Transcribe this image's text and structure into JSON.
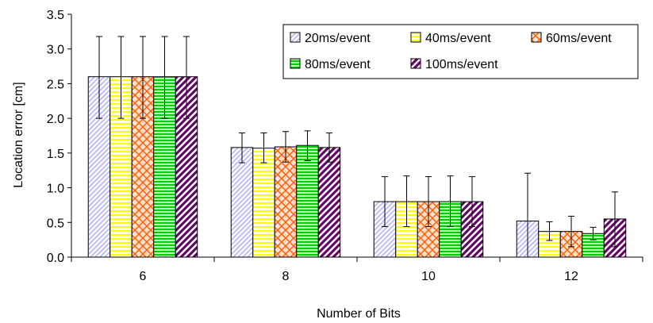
{
  "chart_data": {
    "type": "bar",
    "title": "",
    "xlabel": "Number of Bits",
    "ylabel": "Location error [cm]",
    "ylim": [
      0,
      3.5
    ],
    "yticks": [
      "0.0",
      "0.5",
      "1.0",
      "1.5",
      "2.0",
      "2.5",
      "3.0",
      "3.5"
    ],
    "categories": [
      "6",
      "8",
      "10",
      "12"
    ],
    "grid": false,
    "legend_position": "top-right",
    "series": [
      {
        "name": "20ms/event",
        "pattern": "diagonal-light",
        "color": "#9999ff",
        "values": [
          2.6,
          1.58,
          0.8,
          0.52
        ],
        "err_low": [
          2.0,
          1.36,
          0.44,
          0.0
        ],
        "err_high": [
          3.18,
          1.79,
          1.16,
          1.21
        ]
      },
      {
        "name": "40ms/event",
        "pattern": "horizontal-yellow",
        "color": "#ffff00",
        "values": [
          2.6,
          1.57,
          0.8,
          0.37
        ],
        "err_low": [
          2.0,
          1.36,
          0.44,
          0.24
        ],
        "err_high": [
          3.18,
          1.79,
          1.17,
          0.51
        ]
      },
      {
        "name": "60ms/event",
        "pattern": "cross-orange",
        "color": "#ff6600",
        "values": [
          2.6,
          1.59,
          0.8,
          0.37
        ],
        "err_low": [
          2.0,
          1.37,
          0.44,
          0.15
        ],
        "err_high": [
          3.18,
          1.81,
          1.16,
          0.59
        ]
      },
      {
        "name": "80ms/event",
        "pattern": "horizontal-green",
        "color": "#00cc00",
        "values": [
          2.6,
          1.61,
          0.8,
          0.34
        ],
        "err_low": [
          2.0,
          1.39,
          0.44,
          0.25
        ],
        "err_high": [
          3.18,
          1.82,
          1.17,
          0.43
        ]
      },
      {
        "name": "100ms/event",
        "pattern": "diagonal-purple",
        "color": "#660066",
        "values": [
          2.6,
          1.58,
          0.8,
          0.55
        ],
        "err_low": [
          2.0,
          1.37,
          0.44,
          0.15
        ],
        "err_high": [
          3.18,
          1.79,
          1.16,
          0.94
        ]
      }
    ]
  }
}
